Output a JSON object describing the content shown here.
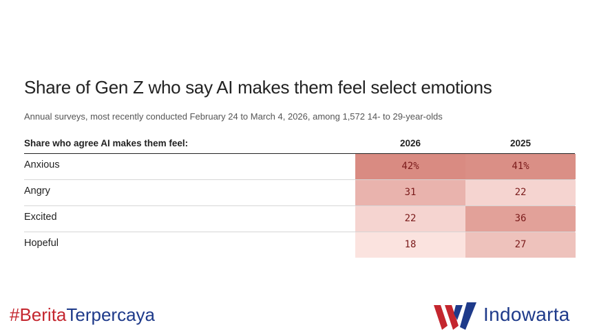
{
  "chart_data": {
    "type": "table",
    "title": "Share of Gen Z who say AI makes them feel select emotions",
    "subtitle": "Annual surveys, most recently conducted February 24 to March 4, 2026, among 1,572 14- to 29-year-olds",
    "row_header": "Share who agree AI makes them feel:",
    "columns": [
      "2026",
      "2025"
    ],
    "rows": [
      {
        "label": "Anxious",
        "values": [
          "42%",
          "41%"
        ],
        "numeric": [
          42,
          41
        ]
      },
      {
        "label": "Angry",
        "values": [
          "31",
          "22"
        ],
        "numeric": [
          31,
          22
        ]
      },
      {
        "label": "Excited",
        "values": [
          "22",
          "36"
        ],
        "numeric": [
          22,
          36
        ]
      },
      {
        "label": "Hopeful",
        "values": [
          "18",
          "27"
        ],
        "numeric": [
          18,
          27
        ]
      }
    ],
    "color_scale": {
      "low": "#fbe3df",
      "high": "#d98b82"
    }
  },
  "footer": {
    "hashtag_part1": "#Berita",
    "hashtag_part2": "Terpercaya",
    "brand": "Indowarta"
  },
  "colors": {
    "hashtag_red": "#c4262e",
    "brand_blue": "#1e3a8a"
  }
}
